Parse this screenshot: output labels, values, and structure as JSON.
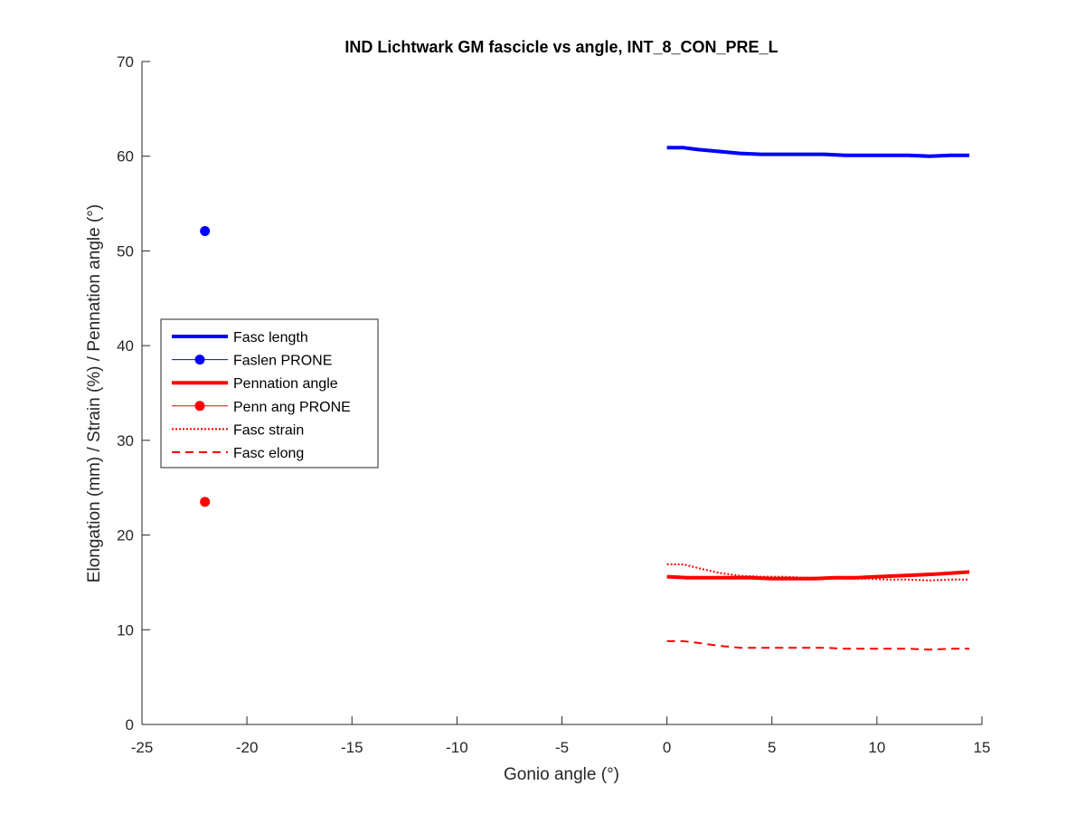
{
  "chart_data": {
    "type": "line",
    "title": "IND Lichtwark GM fascicle vs angle, INT_8_CON_PRE_L",
    "xlabel": "Gonio angle (°)",
    "ylabel": "Elongation (mm) / Strain (%) / Pennation angle (°)",
    "xlim": [
      -25,
      15
    ],
    "ylim": [
      0,
      70
    ],
    "xticks": [
      -25,
      -20,
      -15,
      -10,
      -5,
      0,
      5,
      10,
      15
    ],
    "yticks": [
      0,
      10,
      20,
      30,
      40,
      50,
      60,
      70
    ],
    "grid": false,
    "legend_position": "middle-left",
    "series": [
      {
        "name": "Fasc length",
        "color": "#0000FF",
        "style": "solid-thick",
        "x": [
          0,
          0.8,
          1.5,
          2.5,
          3.5,
          4.5,
          5.5,
          6.5,
          7.5,
          8.5,
          9.5,
          10.5,
          11.5,
          12.5,
          13.5,
          14.4
        ],
        "y": [
          60.9,
          60.9,
          60.7,
          60.5,
          60.3,
          60.2,
          60.2,
          60.2,
          60.2,
          60.1,
          60.1,
          60.1,
          60.1,
          60.0,
          60.1,
          60.1
        ]
      },
      {
        "name": "Faslen PRONE",
        "color": "#0000FF",
        "style": "marker",
        "x": [
          -22
        ],
        "y": [
          52.1
        ]
      },
      {
        "name": "Pennation angle",
        "color": "#FF0000",
        "style": "solid-thick",
        "x": [
          0,
          1,
          2,
          3,
          4,
          5,
          6,
          7,
          8,
          9,
          10,
          11,
          12,
          13,
          14.4
        ],
        "y": [
          15.6,
          15.5,
          15.5,
          15.5,
          15.5,
          15.4,
          15.4,
          15.4,
          15.5,
          15.5,
          15.6,
          15.7,
          15.8,
          15.9,
          16.1
        ]
      },
      {
        "name": "Penn ang PRONE",
        "color": "#FF0000",
        "style": "marker",
        "x": [
          -22
        ],
        "y": [
          23.5
        ]
      },
      {
        "name": "Fasc strain",
        "color": "#FF0000",
        "style": "dotted",
        "x": [
          0,
          0.8,
          1.5,
          2.5,
          3.5,
          4.5,
          5.5,
          6.5,
          7.5,
          8.5,
          9.5,
          10.5,
          11.5,
          12.5,
          13.5,
          14.4
        ],
        "y": [
          16.9,
          16.9,
          16.5,
          16.0,
          15.7,
          15.6,
          15.6,
          15.5,
          15.5,
          15.4,
          15.4,
          15.3,
          15.3,
          15.2,
          15.3,
          15.3
        ]
      },
      {
        "name": "Fasc elong",
        "color": "#FF0000",
        "style": "dashed",
        "x": [
          0,
          0.8,
          1.5,
          2.5,
          3.5,
          4.5,
          5.5,
          6.5,
          7.5,
          8.5,
          9.5,
          10.5,
          11.5,
          12.5,
          13.5,
          14.4
        ],
        "y": [
          8.8,
          8.8,
          8.6,
          8.3,
          8.1,
          8.1,
          8.1,
          8.1,
          8.1,
          8.0,
          8.0,
          8.0,
          8.0,
          7.9,
          8.0,
          8.0
        ]
      }
    ]
  }
}
